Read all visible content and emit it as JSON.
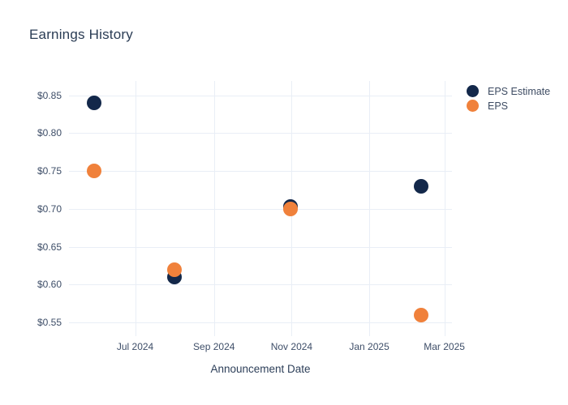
{
  "chart": {
    "title": "Earnings History",
    "xlabel": "Announcement Date"
  },
  "colors": {
    "eps_estimate": "#13284a",
    "eps": "#f0813b",
    "gridline": "#e9eef6",
    "tick_text": "#3e4e68",
    "title_text": "#2a3c54",
    "background": "#ffffff"
  },
  "legend": {
    "items": [
      {
        "label": "EPS Estimate",
        "color": "#13284a"
      },
      {
        "label": "EPS",
        "color": "#f0813b"
      }
    ]
  },
  "chart_data": {
    "type": "scatter",
    "title": "Earnings History",
    "xlabel": "Announcement Date",
    "ylabel": "",
    "grid": true,
    "legend_position": "top-right",
    "x_ticks": [
      {
        "label": "Jul 2024",
        "date": "2024-07-01"
      },
      {
        "label": "Sep 2024",
        "date": "2024-09-01"
      },
      {
        "label": "Nov 2024",
        "date": "2024-11-01"
      },
      {
        "label": "Jan 2025",
        "date": "2025-01-01"
      },
      {
        "label": "Mar 2025",
        "date": "2025-03-01"
      }
    ],
    "y_ticks": [
      {
        "label": "$0.85",
        "value": 0.85
      },
      {
        "label": "$0.80",
        "value": 0.8
      },
      {
        "label": "$0.75",
        "value": 0.75
      },
      {
        "label": "$0.70",
        "value": 0.7
      },
      {
        "label": "$0.65",
        "value": 0.65
      },
      {
        "label": "$0.60",
        "value": 0.6
      },
      {
        "label": "$0.55",
        "value": 0.55
      }
    ],
    "xlim": [
      "2024-05-10",
      "2025-03-07"
    ],
    "ylim": [
      0.532,
      0.869
    ],
    "series": [
      {
        "name": "EPS Estimate",
        "color": "#13284a",
        "points": [
          {
            "date": "2024-05-30",
            "value": 0.84
          },
          {
            "date": "2024-08-01",
            "value": 0.61
          },
          {
            "date": "2024-10-31",
            "value": 0.7
          },
          {
            "date": "2025-02-11",
            "value": 0.73
          }
        ]
      },
      {
        "name": "EPS",
        "color": "#f0813b",
        "points": [
          {
            "date": "2024-05-30",
            "value": 0.75
          },
          {
            "date": "2024-08-01",
            "value": 0.62
          },
          {
            "date": "2024-10-31",
            "value": 0.7
          },
          {
            "date": "2025-02-11",
            "value": 0.56
          }
        ]
      }
    ]
  }
}
